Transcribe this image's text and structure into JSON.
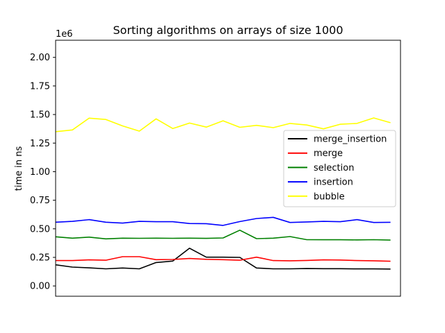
{
  "chart_data": {
    "type": "line",
    "title": "Sorting algorithms on arrays of size 1000",
    "xlabel": "",
    "ylabel": "time in ns",
    "y_scale_label": "1e6",
    "ylim": [
      -90000,
      2150000
    ],
    "xlim": [
      0,
      20.6
    ],
    "yticks": [
      0,
      250000,
      500000,
      750000,
      1000000,
      1250000,
      1500000,
      1750000,
      2000000
    ],
    "ytick_labels": [
      "0.00",
      "0.25",
      "0.50",
      "0.75",
      "1.00",
      "1.25",
      "1.50",
      "1.75",
      "2.00"
    ],
    "x_ticks_visible": false,
    "grid": false,
    "legend_position": "center-right",
    "x": [
      0,
      1,
      2,
      3,
      4,
      5,
      6,
      7,
      8,
      9,
      10,
      11,
      12,
      13,
      14,
      15,
      16,
      17,
      18,
      19,
      20
    ],
    "series": [
      {
        "name": "merge_insertion",
        "color": "#000000",
        "values": [
          185000,
          165000,
          158000,
          150000,
          157000,
          150000,
          205000,
          218000,
          330000,
          252000,
          252000,
          250000,
          157000,
          150000,
          150000,
          152000,
          151000,
          151000,
          149000,
          149000,
          148000
        ]
      },
      {
        "name": "merge",
        "color": "#ff0000",
        "values": [
          222000,
          222000,
          228000,
          225000,
          256000,
          256000,
          230000,
          232000,
          240000,
          233000,
          230000,
          225000,
          252000,
          222000,
          220000,
          223000,
          228000,
          227000,
          222000,
          220000,
          216000
        ]
      },
      {
        "name": "selection",
        "color": "#008000",
        "values": [
          430000,
          418000,
          427000,
          412000,
          418000,
          417000,
          418000,
          417000,
          418000,
          416000,
          420000,
          488000,
          414000,
          418000,
          432000,
          405000,
          404000,
          404000,
          403000,
          405000,
          401000
        ]
      },
      {
        "name": "insertion",
        "color": "#0000ff",
        "values": [
          558000,
          565000,
          580000,
          558000,
          550000,
          565000,
          562000,
          562000,
          546000,
          545000,
          530000,
          563000,
          590000,
          600000,
          555000,
          560000,
          565000,
          562000,
          580000,
          555000,
          557000
        ]
      },
      {
        "name": "bubble",
        "color": "#ffff00",
        "values": [
          1350000,
          1365000,
          1468000,
          1457000,
          1400000,
          1355000,
          1462000,
          1377000,
          1425000,
          1390000,
          1445000,
          1388000,
          1405000,
          1385000,
          1422000,
          1408000,
          1375000,
          1415000,
          1422000,
          1470000,
          1428000
        ]
      }
    ]
  }
}
